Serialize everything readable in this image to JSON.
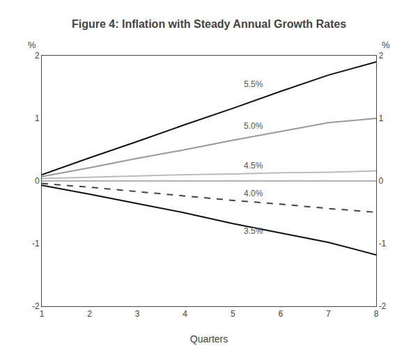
{
  "chart_data": {
    "type": "line",
    "title": "Figure 4: Inflation with Steady Annual Growth Rates",
    "xlabel": "Quarters",
    "ylabel": "%",
    "y2label": "%",
    "x": [
      1,
      2,
      3,
      4,
      5,
      6,
      7,
      8
    ],
    "series": [
      {
        "name": "5.5%",
        "color": "#111111",
        "line_style": "solid",
        "values": [
          0.1,
          0.37,
          0.63,
          0.9,
          1.16,
          1.43,
          1.69,
          1.9
        ]
      },
      {
        "name": "5.0%",
        "color": "#999999",
        "line_style": "solid",
        "values": [
          0.07,
          0.21,
          0.36,
          0.5,
          0.65,
          0.79,
          0.93,
          1.0
        ]
      },
      {
        "name": "4.5%",
        "color": "#bbbbbb",
        "line_style": "solid",
        "values": [
          0.04,
          0.06,
          0.08,
          0.1,
          0.11,
          0.13,
          0.14,
          0.16
        ]
      },
      {
        "name": "4.0%",
        "color": "#444444",
        "line_style": "dashed",
        "values": [
          -0.04,
          -0.1,
          -0.17,
          -0.24,
          -0.31,
          -0.37,
          -0.44,
          -0.5
        ]
      },
      {
        "name": "3.5%",
        "color": "#111111",
        "line_style": "solid",
        "values": [
          -0.07,
          -0.21,
          -0.36,
          -0.51,
          -0.68,
          -0.83,
          -0.98,
          -1.18
        ]
      }
    ],
    "annotations": [
      {
        "text": "5.5%",
        "x": 5.2,
        "y": 1.55
      },
      {
        "text": "5.0%",
        "x": 5.2,
        "y": 0.88
      },
      {
        "text": "4.5%",
        "x": 5.2,
        "y": 0.25
      },
      {
        "text": "4.0%",
        "x": 5.2,
        "y": -0.2
      },
      {
        "text": "3.5%",
        "x": 5.2,
        "y": -0.8
      }
    ],
    "hline": {
      "y": 0,
      "color": "#666666"
    },
    "xlim": [
      1,
      8
    ],
    "xticks": [
      1,
      2,
      3,
      4,
      5,
      6,
      7,
      8
    ],
    "ylim": [
      -2,
      2
    ],
    "yticks": [
      -2,
      -1,
      0,
      1,
      2
    ],
    "y2lim": [
      -2,
      2
    ],
    "y2ticks": [
      -2,
      -1,
      0,
      1,
      2
    ],
    "grid": false
  }
}
